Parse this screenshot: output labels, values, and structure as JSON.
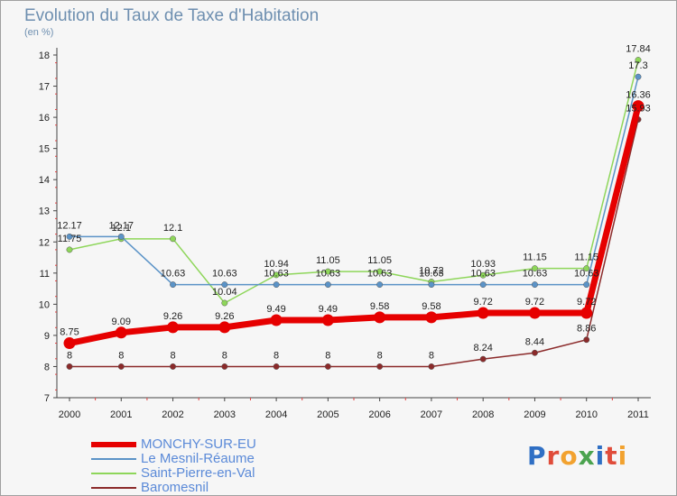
{
  "header": {
    "title": "Evolution du Taux de Taxe d'Habitation",
    "unit": "(en %)"
  },
  "logo": {
    "text": "Proxiti",
    "colors": [
      "#2f6fc4",
      "#e04c3a",
      "#f2a22f",
      "#4ba34f",
      "#2f6fc4",
      "#e04c3a",
      "#f2a22f"
    ]
  },
  "chart_data": {
    "type": "line",
    "x": [
      "2000",
      "2001",
      "2002",
      "2003",
      "2004",
      "2005",
      "2006",
      "2007",
      "2008",
      "2009",
      "2010",
      "2011"
    ],
    "ylim": [
      7,
      18
    ],
    "yticks": [
      7,
      8,
      9,
      10,
      11,
      12,
      13,
      14,
      15,
      16,
      17,
      18
    ],
    "grid": false,
    "legend": "bottom-left",
    "series": [
      {
        "name": "Baromesnil",
        "color": "#8b2a2a",
        "values": [
          8,
          8,
          8,
          8,
          8,
          8,
          8,
          8,
          8.24,
          8.44,
          8.86,
          15.93
        ],
        "labels": [
          "8",
          "8",
          "8",
          "8",
          "8",
          "8",
          "8",
          "8",
          "8.24",
          "8.44",
          "8.86",
          "15.93"
        ]
      },
      {
        "name": "Saint-Pierre-en-Val",
        "color": "#8ed65a",
        "values": [
          11.75,
          12.1,
          12.1,
          10.04,
          10.94,
          11.05,
          11.05,
          10.72,
          10.93,
          11.15,
          11.15,
          17.84
        ],
        "labels": [
          "11.75",
          "12.1",
          "12.1",
          "10.04",
          "10.94",
          "11.05",
          "11.05",
          "10.72",
          "10.93",
          "11.15",
          "11.15",
          "17.84"
        ]
      },
      {
        "name": "Le Mesnil-Réaume",
        "color": "#5b93c7",
        "values": [
          12.17,
          12.17,
          10.63,
          10.63,
          10.63,
          10.63,
          10.63,
          10.63,
          10.63,
          10.63,
          10.63,
          17.3
        ],
        "labels": [
          "12.17",
          "12.17",
          "10.63",
          "10.63",
          "10.63",
          "10.63",
          "10.63",
          "10.63",
          "10.63",
          "10.63",
          "10.63",
          "17.3"
        ]
      },
      {
        "name": "MONCHY-SUR-EU",
        "color": "#e60000",
        "values": [
          8.75,
          9.09,
          9.26,
          9.26,
          9.49,
          9.49,
          9.58,
          9.58,
          9.72,
          9.72,
          9.72,
          16.36
        ],
        "labels": [
          "8.75",
          "9.09",
          "9.26",
          "9.26",
          "9.49",
          "9.49",
          "9.58",
          "9.58",
          "9.72",
          "9.72",
          "9.72",
          "16.36"
        ]
      }
    ]
  },
  "legend": {
    "items": [
      {
        "name": "MONCHY-SUR-EU",
        "color": "#e60000",
        "width": 6
      },
      {
        "name": "Le Mesnil-Réaume",
        "color": "#5b93c7",
        "width": 1.5
      },
      {
        "name": "Saint-Pierre-en-Val",
        "color": "#8ed65a",
        "width": 1.5
      },
      {
        "name": "Baromesnil",
        "color": "#8b2a2a",
        "width": 1.5
      }
    ]
  }
}
